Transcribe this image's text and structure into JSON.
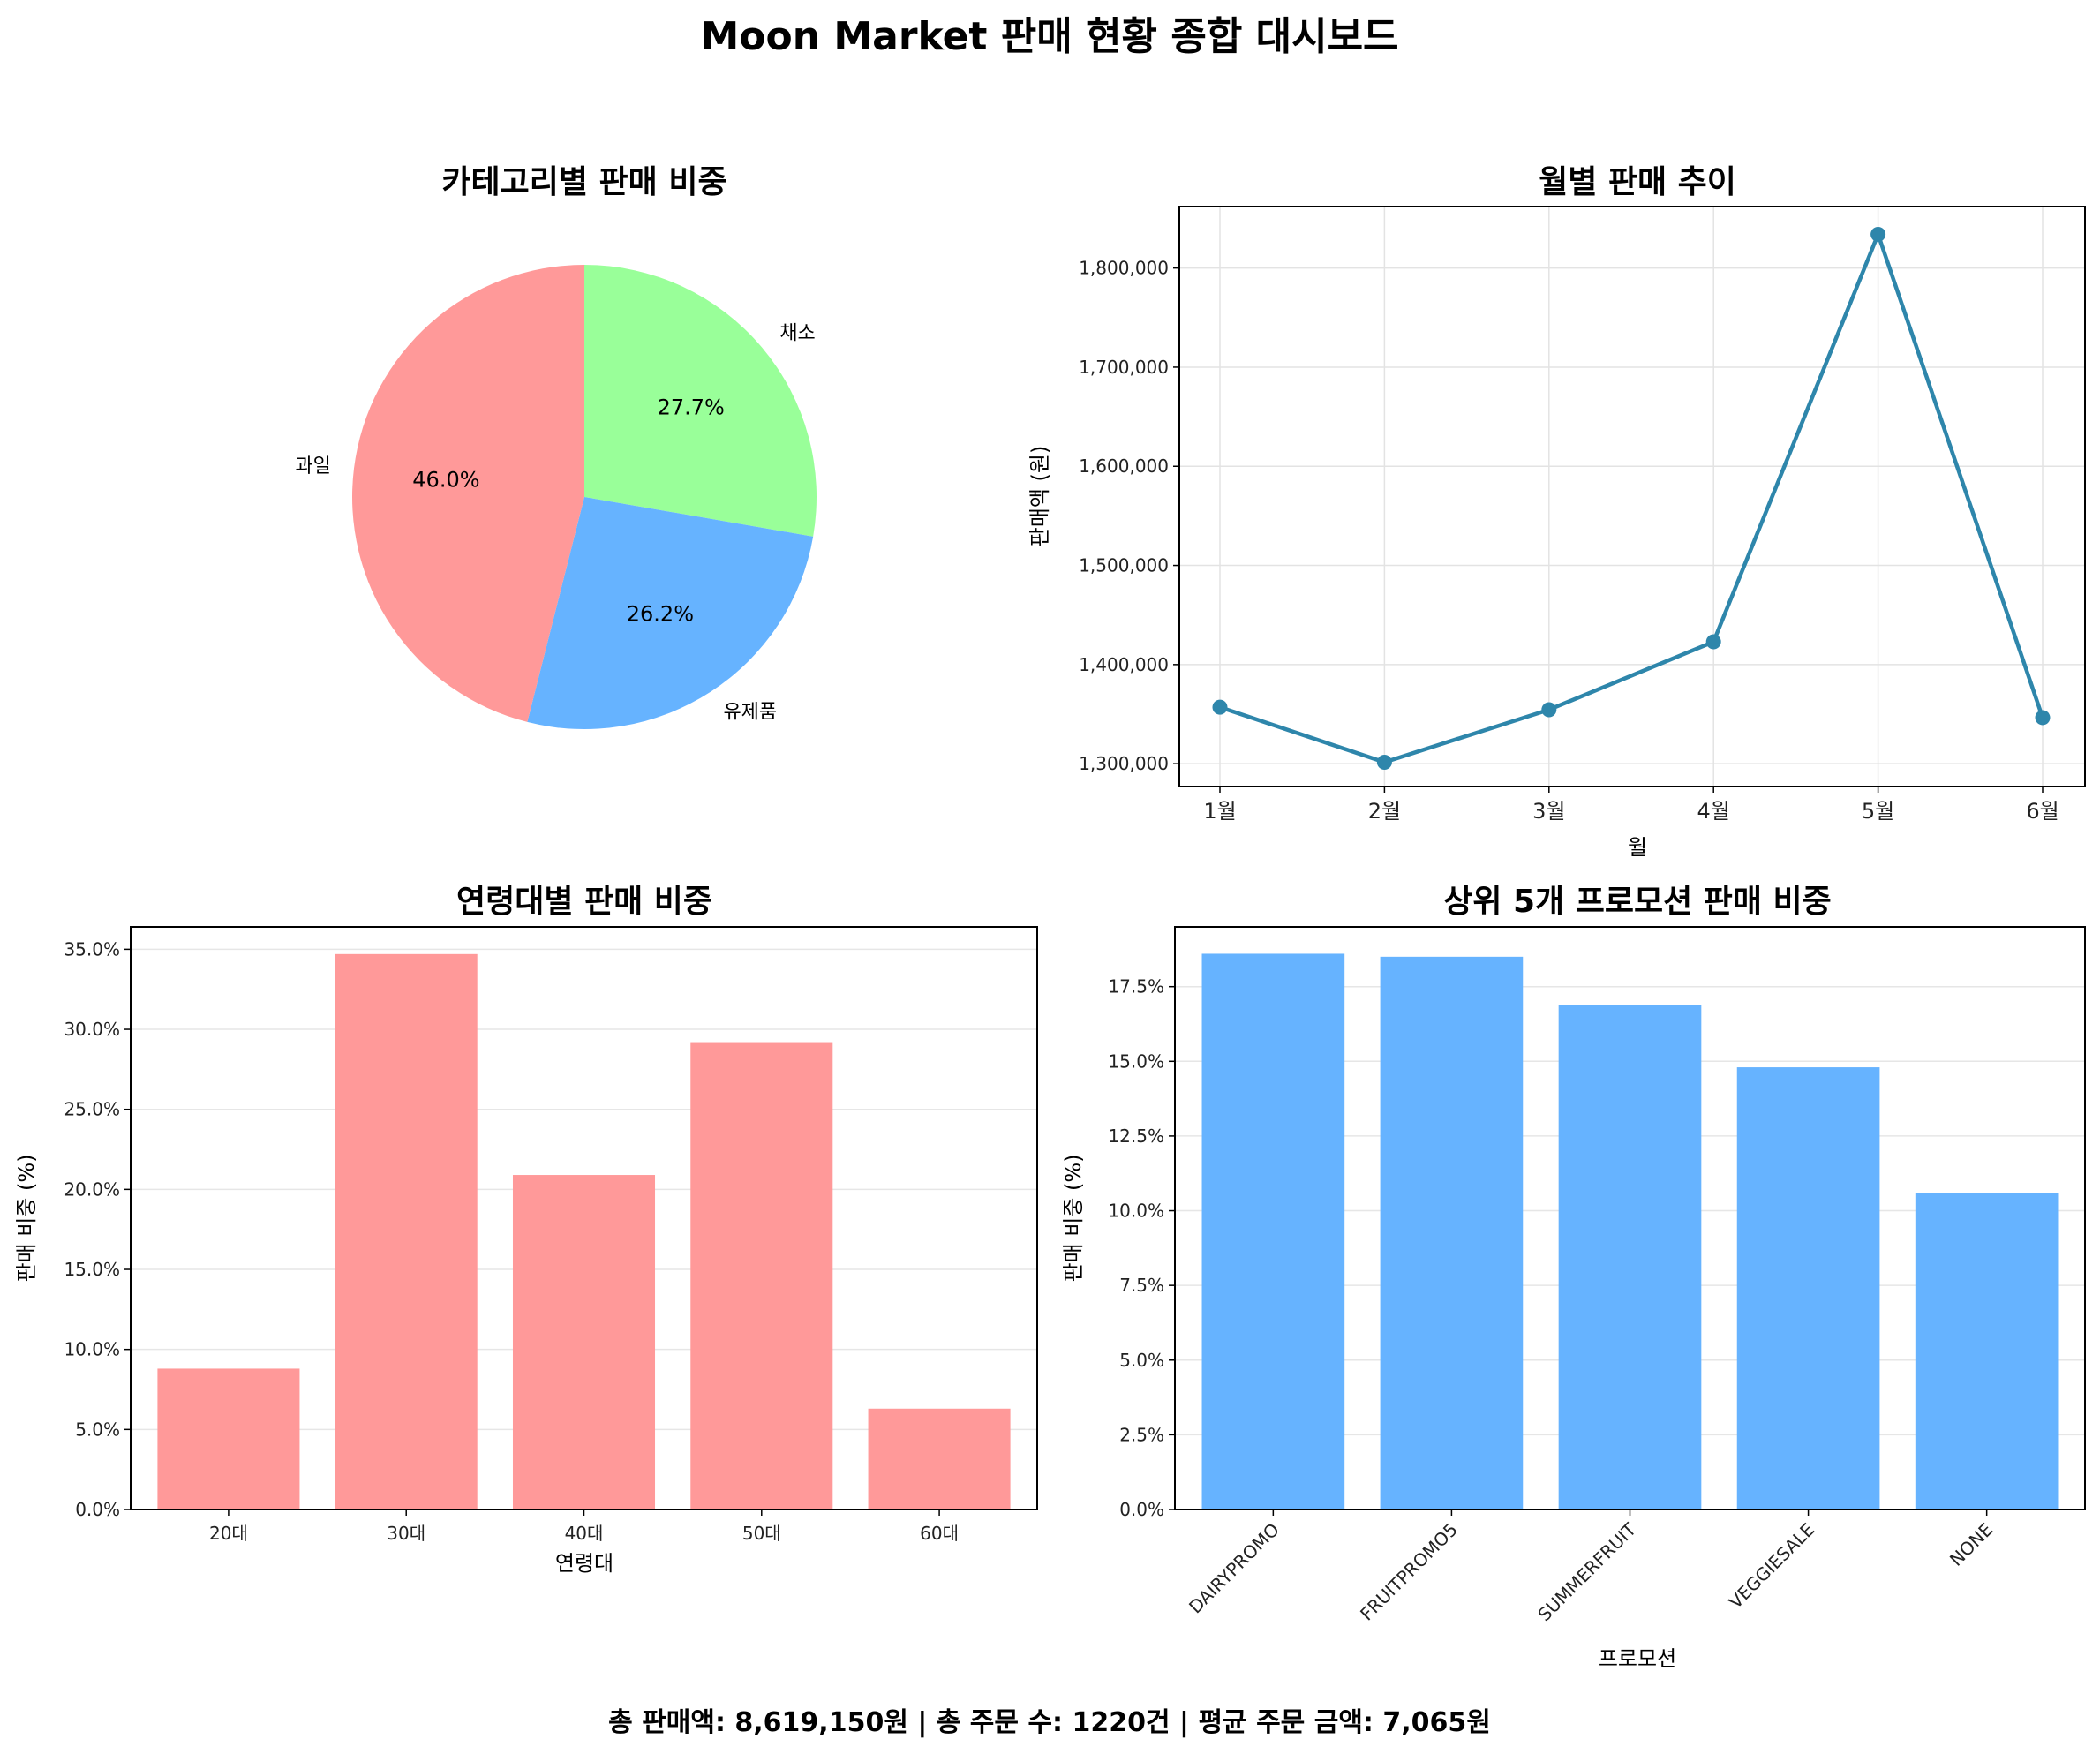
{
  "title": "Moon Market 판매 현황 종합 대시보드",
  "footer": "총 판매액: 8,619,150원 | 총 주문 수: 1220건 | 평균 주문 금액: 7,065원",
  "chart_data": [
    {
      "type": "pie",
      "title": "카테고리별 판매 비중",
      "slices": [
        {
          "label": "채소",
          "pct": 27.7,
          "pct_label": "27.7%",
          "color": "#99ff99"
        },
        {
          "label": "유제품",
          "pct": 26.2,
          "pct_label": "26.2%",
          "color": "#66b3ff"
        },
        {
          "label": "과일",
          "pct": 46.0,
          "pct_label": "46.0%",
          "color": "#ff9999"
        }
      ],
      "start": "top, clockwise"
    },
    {
      "type": "line",
      "title": "월별 판매 추이",
      "xlabel": "월",
      "ylabel": "판매액 (원)",
      "categories": [
        "1월",
        "2월",
        "3월",
        "4월",
        "5월",
        "6월"
      ],
      "values": [
        1357000,
        1301500,
        1354500,
        1423000,
        1834000,
        1346500
      ],
      "ylim": [
        1277000,
        1862000
      ],
      "yticks": [
        1300000,
        1400000,
        1500000,
        1600000,
        1700000,
        1800000
      ],
      "ytick_labels": [
        "1,300,000",
        "1,400,000",
        "1,500,000",
        "1,600,000",
        "1,700,000",
        "1,800,000"
      ],
      "color": "#2e86ab",
      "grid": true
    },
    {
      "type": "bar",
      "title": "연령대별 판매 비중",
      "xlabel": "연령대",
      "ylabel": "판매 비중 (%)",
      "categories": [
        "20대",
        "30대",
        "40대",
        "50대",
        "60대"
      ],
      "values": [
        8.8,
        34.7,
        20.9,
        29.2,
        6.3
      ],
      "ylim": [
        0,
        36.4
      ],
      "yticks": [
        0,
        5,
        10,
        15,
        20,
        25,
        30,
        35
      ],
      "ytick_labels": [
        "0.0%",
        "5.0%",
        "10.0%",
        "15.0%",
        "20.0%",
        "25.0%",
        "30.0%",
        "35.0%"
      ],
      "color": "#ff9999",
      "grid": true
    },
    {
      "type": "bar",
      "title": "상위 5개 프로모션 판매 비중",
      "xlabel": "프로모션",
      "ylabel": "판매 비중 (%)",
      "categories": [
        "DAIRYPROMO",
        "FRUITPROMO5",
        "SUMMERFRUIT",
        "VEGGIESALE",
        "NONE"
      ],
      "values": [
        18.6,
        18.5,
        16.9,
        14.8,
        10.6
      ],
      "ylim": [
        0,
        19.5
      ],
      "yticks": [
        0,
        2.5,
        5,
        7.5,
        10,
        12.5,
        15,
        17.5
      ],
      "ytick_labels": [
        "0.0%",
        "2.5%",
        "5.0%",
        "7.5%",
        "10.0%",
        "12.5%",
        "15.0%",
        "17.5%"
      ],
      "color": "#66b3ff",
      "grid": true
    }
  ]
}
